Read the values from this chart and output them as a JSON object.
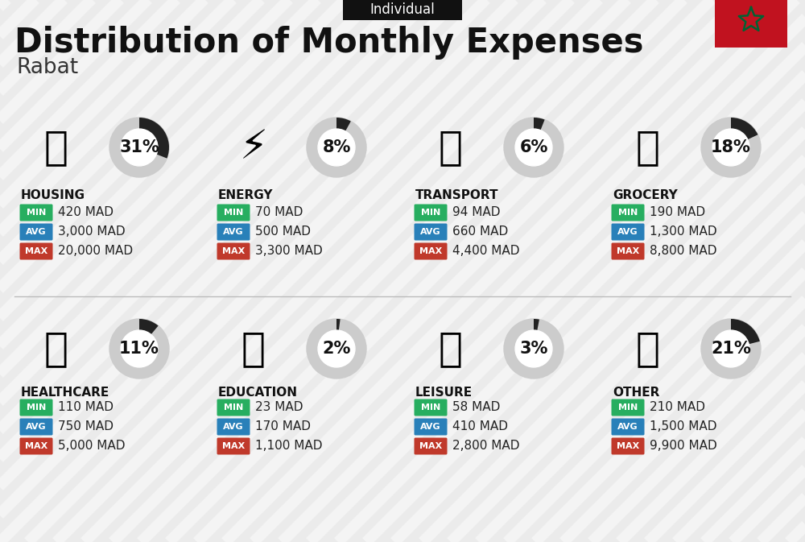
{
  "title": "Distribution of Monthly Expenses",
  "subtitle": "Individual",
  "city": "Rabat",
  "background_color": "#ebebeb",
  "categories": [
    {
      "name": "HOUSING",
      "percent": 31,
      "min": "420 MAD",
      "avg": "3,000 MAD",
      "max": "20,000 MAD",
      "row": 0,
      "col": 0
    },
    {
      "name": "ENERGY",
      "percent": 8,
      "min": "70 MAD",
      "avg": "500 MAD",
      "max": "3,300 MAD",
      "row": 0,
      "col": 1
    },
    {
      "name": "TRANSPORT",
      "percent": 6,
      "min": "94 MAD",
      "avg": "660 MAD",
      "max": "4,400 MAD",
      "row": 0,
      "col": 2
    },
    {
      "name": "GROCERY",
      "percent": 18,
      "min": "190 MAD",
      "avg": "1,300 MAD",
      "max": "8,800 MAD",
      "row": 0,
      "col": 3
    },
    {
      "name": "HEALTHCARE",
      "percent": 11,
      "min": "110 MAD",
      "avg": "750 MAD",
      "max": "5,000 MAD",
      "row": 1,
      "col": 0
    },
    {
      "name": "EDUCATION",
      "percent": 2,
      "min": "23 MAD",
      "avg": "170 MAD",
      "max": "1,100 MAD",
      "row": 1,
      "col": 1
    },
    {
      "name": "LEISURE",
      "percent": 3,
      "min": "58 MAD",
      "avg": "410 MAD",
      "max": "2,800 MAD",
      "row": 1,
      "col": 2
    },
    {
      "name": "OTHER",
      "percent": 21,
      "min": "210 MAD",
      "avg": "1,500 MAD",
      "max": "9,900 MAD",
      "row": 1,
      "col": 3
    }
  ],
  "min_color": "#27ae60",
  "avg_color": "#2980b9",
  "max_color": "#c0392b",
  "donut_bg": "#cccccc",
  "donut_filled": "#222222",
  "title_fontsize": 30,
  "subtitle_fontsize": 12,
  "city_fontsize": 19,
  "cat_fontsize": 11,
  "pct_fontsize": 15,
  "val_fontsize": 11,
  "badge_fontsize": 8,
  "stripe_color": "#ffffff",
  "stripe_alpha": 0.45,
  "flag_red": "#c1121f",
  "flag_green": "#006233"
}
